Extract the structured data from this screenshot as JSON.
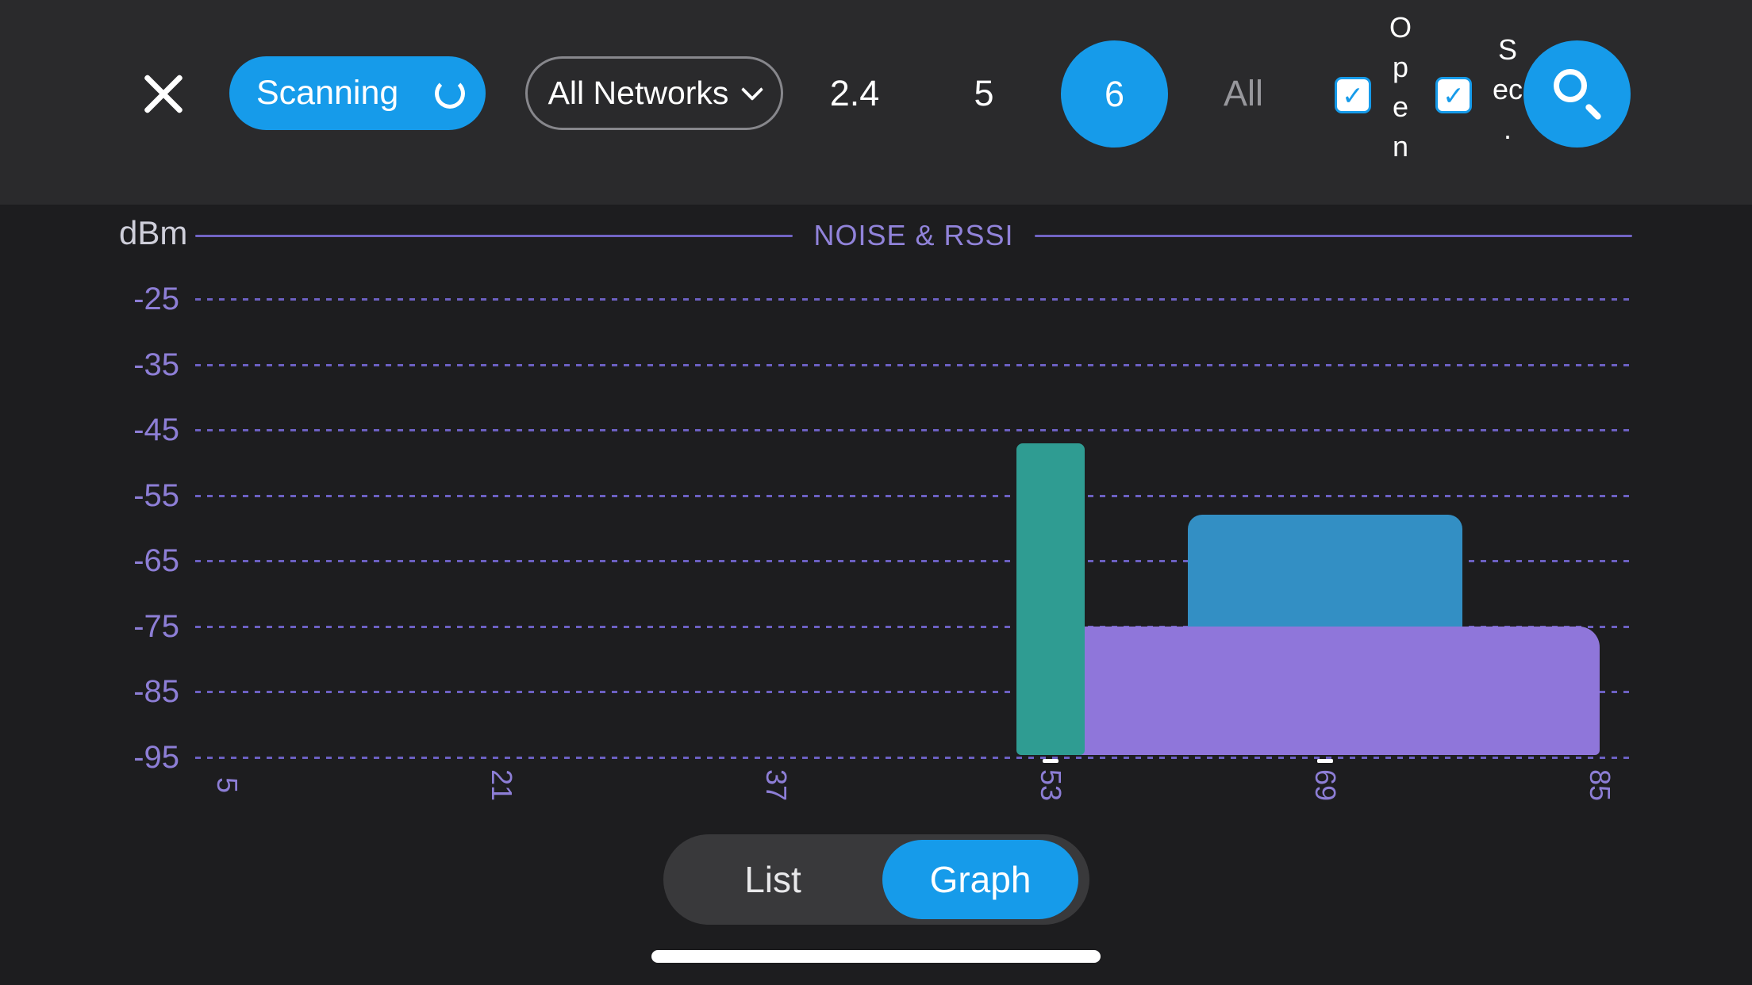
{
  "colors": {
    "accent": "#169bea",
    "chart_purple": "#8d7ed6",
    "teal": "#2f9c92",
    "blue": "#338fc4",
    "purple": "#8f76da"
  },
  "header": {
    "scanning_button": "Scanning",
    "network_dropdown": "All Networks",
    "bands": [
      {
        "label": "2.4",
        "selected": false
      },
      {
        "label": "5",
        "selected": false
      },
      {
        "label": "6",
        "selected": true
      },
      {
        "label": "All",
        "selected": false
      }
    ],
    "open_filter": {
      "checked": true,
      "label": "Open",
      "lines": [
        "O",
        "p",
        "e",
        "n"
      ]
    },
    "secure_filter": {
      "checked": true,
      "label": "Sec.",
      "lines": [
        "S",
        "ec",
        "."
      ]
    },
    "check_glyph": "✓"
  },
  "chart_data": {
    "type": "area",
    "title": "NOISE & RSSI",
    "ylabel": "dBm",
    "yticks": [
      -25,
      -35,
      -45,
      -55,
      -65,
      -75,
      -85,
      -95
    ],
    "xticks": [
      5,
      21,
      37,
      53,
      69,
      85
    ],
    "ylim": [
      -95,
      -25
    ],
    "xlim": [
      5,
      85
    ],
    "grid": "dashed-horizontal",
    "series": [
      {
        "name": "teal-network",
        "center_channel": 53,
        "width_channels": 4,
        "rssi_dbm": -47,
        "color": "#2f9c92"
      },
      {
        "name": "blue-network",
        "center_channel": 69,
        "width_channels": 16,
        "rssi_dbm": -58,
        "color": "#338fc4"
      },
      {
        "name": "purple-network",
        "center_channel": 69,
        "width_channels": 32,
        "rssi_dbm": -75,
        "color": "#8f76da"
      }
    ]
  },
  "footer": {
    "segments": [
      {
        "label": "List",
        "selected": false
      },
      {
        "label": "Graph",
        "selected": true
      }
    ]
  }
}
